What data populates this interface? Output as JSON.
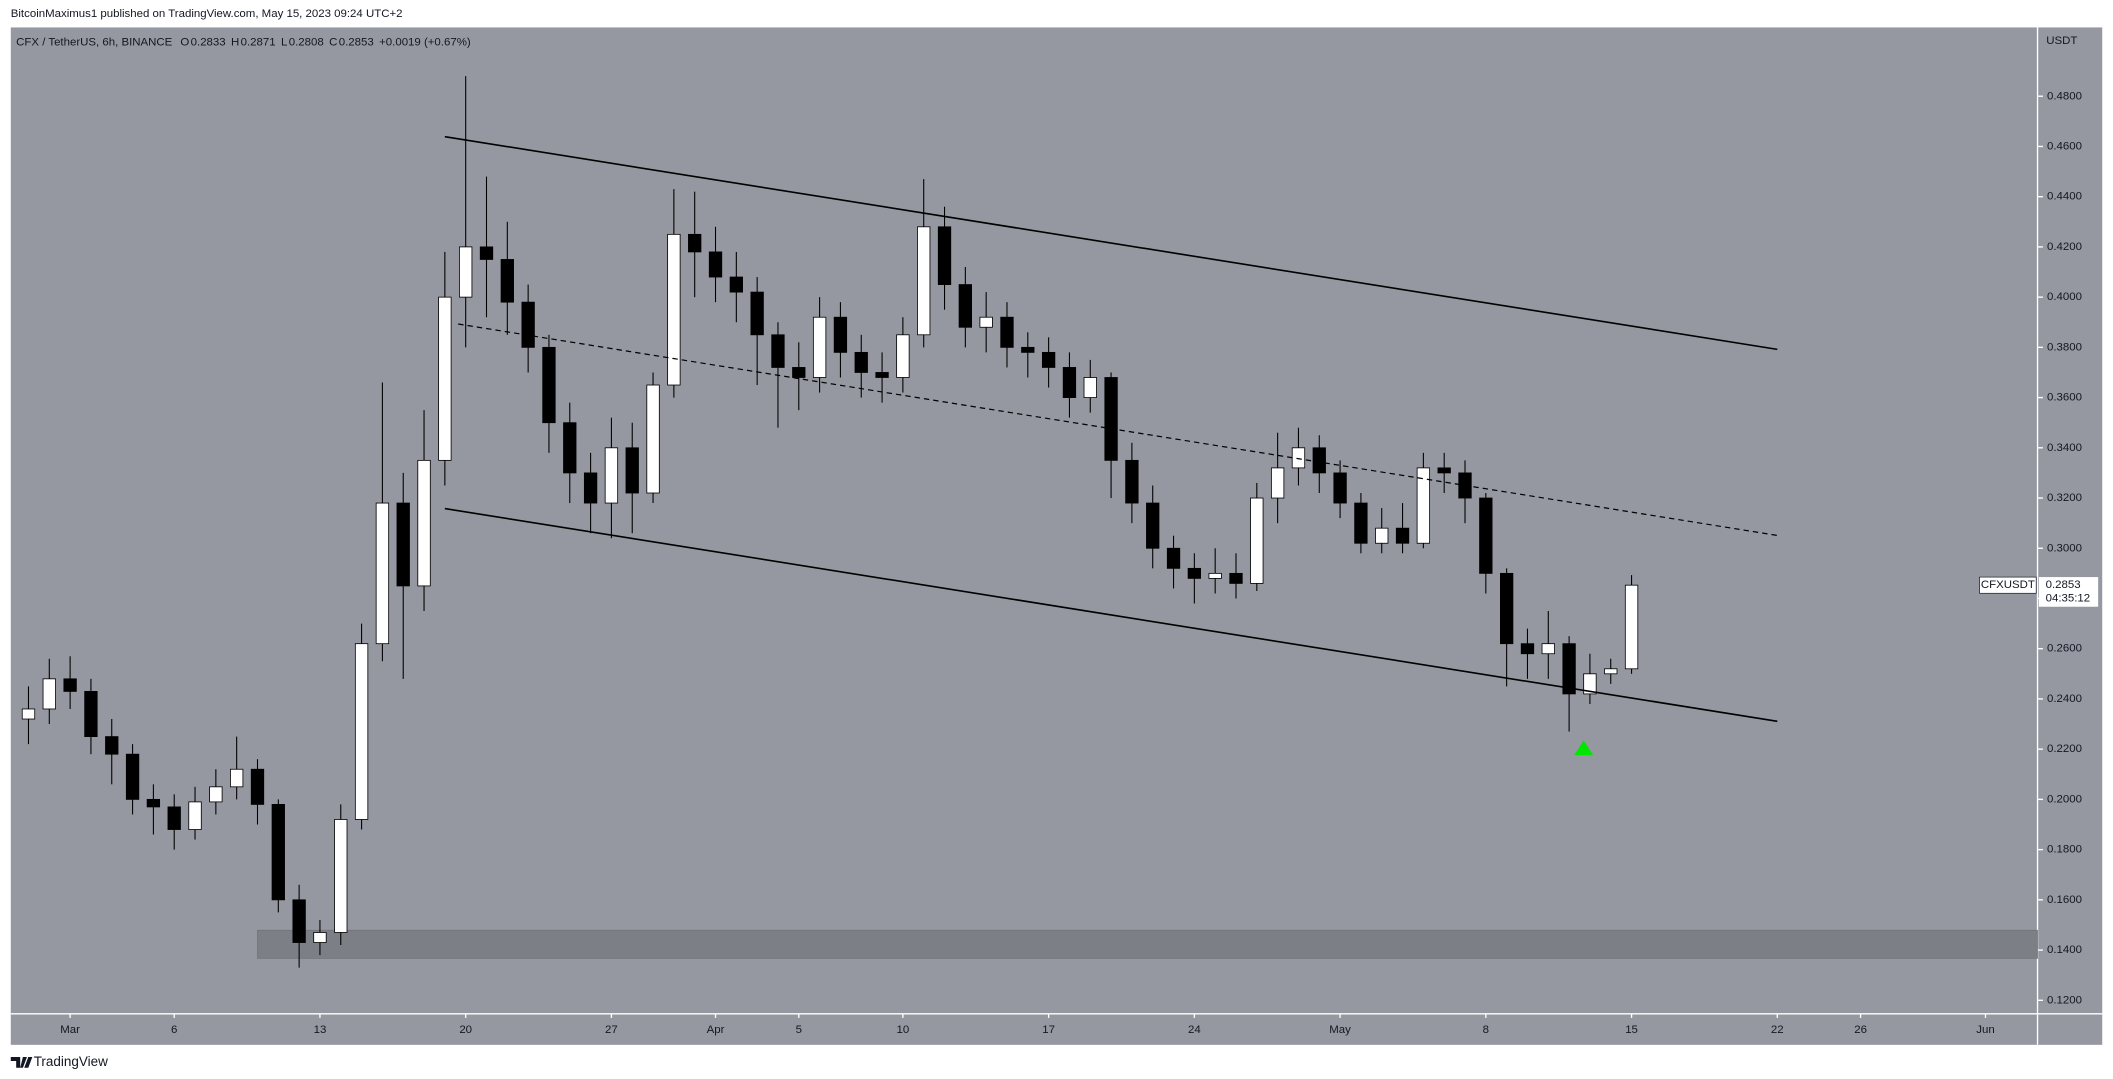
{
  "chart_data": {
    "type": "candlestick",
    "published": "BitcoinMaximus1 published on TradingView.com, May 15, 2023 09:24 UTC+2",
    "symbol": "CFX / TetherUS, 6h, BINANCE",
    "ohlc_header": [
      {
        "key": "O",
        "value": 0.2833
      },
      {
        "key": "H",
        "value": 0.2871
      },
      {
        "key": "L",
        "value": 0.2808
      },
      {
        "key": "C",
        "value": 0.2853
      }
    ],
    "change": "+0.0019 (+0.67%)",
    "y_unit": "USDT",
    "brand": "TradingView",
    "background": "#9598a1",
    "up_color": "#ffffff",
    "down_color": "#000000",
    "wick_color": "#000000",
    "x": [
      58,
      59,
      60,
      61,
      62,
      63,
      64,
      65,
      66,
      67,
      68,
      69,
      70,
      71,
      72,
      73,
      74,
      75,
      76,
      77,
      78,
      79,
      80,
      81,
      82,
      83,
      84,
      85,
      86,
      87,
      88,
      89,
      90,
      91,
      92,
      93,
      94,
      95,
      96,
      97,
      98,
      99,
      100,
      101,
      102,
      103,
      104,
      105,
      106,
      107,
      108,
      109,
      110,
      111,
      112,
      113,
      114,
      115,
      116,
      117,
      118,
      119,
      120,
      121,
      122,
      123,
      124,
      125,
      126,
      127,
      128,
      129,
      130,
      131,
      132,
      133,
      134,
      135
    ],
    "open": [
      0.232,
      0.236,
      0.248,
      0.243,
      0.225,
      0.218,
      0.2,
      0.197,
      0.188,
      0.199,
      0.205,
      0.212,
      0.198,
      0.16,
      0.143,
      0.147,
      0.192,
      0.262,
      0.318,
      0.285,
      0.335,
      0.4,
      0.42,
      0.415,
      0.398,
      0.38,
      0.35,
      0.33,
      0.318,
      0.34,
      0.322,
      0.365,
      0.425,
      0.418,
      0.408,
      0.402,
      0.385,
      0.372,
      0.368,
      0.392,
      0.378,
      0.37,
      0.368,
      0.385,
      0.428,
      0.405,
      0.388,
      0.392,
      0.38,
      0.378,
      0.372,
      0.36,
      0.368,
      0.335,
      0.318,
      0.3,
      0.292,
      0.288,
      0.29,
      0.286,
      0.32,
      0.332,
      0.34,
      0.33,
      0.318,
      0.302,
      0.308,
      0.302,
      0.332,
      0.33,
      0.32,
      0.29,
      0.262,
      0.258,
      0.262,
      0.242,
      0.25,
      0.252
    ],
    "high": [
      0.245,
      0.256,
      0.257,
      0.248,
      0.232,
      0.222,
      0.206,
      0.202,
      0.205,
      0.212,
      0.225,
      0.216,
      0.2,
      0.166,
      0.152,
      0.198,
      0.27,
      0.366,
      0.33,
      0.355,
      0.418,
      0.488,
      0.448,
      0.43,
      0.405,
      0.385,
      0.358,
      0.338,
      0.352,
      0.35,
      0.37,
      0.443,
      0.442,
      0.428,
      0.418,
      0.408,
      0.39,
      0.382,
      0.4,
      0.398,
      0.385,
      0.378,
      0.392,
      0.447,
      0.436,
      0.412,
      0.402,
      0.398,
      0.386,
      0.384,
      0.378,
      0.375,
      0.37,
      0.342,
      0.325,
      0.305,
      0.298,
      0.3,
      0.298,
      0.326,
      0.346,
      0.348,
      0.345,
      0.335,
      0.322,
      0.316,
      0.318,
      0.338,
      0.338,
      0.335,
      0.322,
      0.292,
      0.268,
      0.275,
      0.265,
      0.258,
      0.256,
      0.2893
    ],
    "low": [
      0.222,
      0.23,
      0.236,
      0.218,
      0.206,
      0.194,
      0.186,
      0.18,
      0.184,
      0.194,
      0.2,
      0.19,
      0.155,
      0.133,
      0.138,
      0.142,
      0.188,
      0.255,
      0.248,
      0.275,
      0.325,
      0.38,
      0.392,
      0.385,
      0.37,
      0.338,
      0.318,
      0.306,
      0.304,
      0.306,
      0.318,
      0.36,
      0.4,
      0.398,
      0.39,
      0.365,
      0.348,
      0.355,
      0.362,
      0.368,
      0.36,
      0.358,
      0.362,
      0.38,
      0.395,
      0.38,
      0.378,
      0.372,
      0.368,
      0.364,
      0.352,
      0.354,
      0.32,
      0.31,
      0.292,
      0.284,
      0.278,
      0.282,
      0.28,
      0.283,
      0.31,
      0.325,
      0.322,
      0.312,
      0.298,
      0.298,
      0.298,
      0.3,
      0.322,
      0.31,
      0.282,
      0.245,
      0.248,
      0.248,
      0.227,
      0.238,
      0.246,
      0.25
    ],
    "close": [
      0.236,
      0.248,
      0.243,
      0.225,
      0.218,
      0.2,
      0.197,
      0.188,
      0.199,
      0.205,
      0.212,
      0.198,
      0.16,
      0.143,
      0.147,
      0.192,
      0.262,
      0.318,
      0.285,
      0.335,
      0.4,
      0.42,
      0.415,
      0.398,
      0.38,
      0.35,
      0.33,
      0.318,
      0.34,
      0.322,
      0.365,
      0.425,
      0.418,
      0.408,
      0.402,
      0.385,
      0.372,
      0.368,
      0.392,
      0.378,
      0.37,
      0.368,
      0.385,
      0.428,
      0.405,
      0.388,
      0.392,
      0.38,
      0.378,
      0.372,
      0.36,
      0.368,
      0.335,
      0.318,
      0.3,
      0.292,
      0.288,
      0.29,
      0.286,
      0.32,
      0.332,
      0.34,
      0.33,
      0.318,
      0.302,
      0.308,
      0.302,
      0.332,
      0.33,
      0.32,
      0.29,
      0.262,
      0.258,
      0.262,
      0.242,
      0.25,
      0.252,
      0.2853
    ],
    "xlim": [
      57.15,
      154.5
    ],
    "xticks": [
      {
        "value": 60,
        "label": "Mar"
      },
      {
        "value": 65,
        "label": "6"
      },
      {
        "value": 72,
        "label": "13"
      },
      {
        "value": 79,
        "label": "20"
      },
      {
        "value": 86,
        "label": "27"
      },
      {
        "value": 91,
        "label": "Apr"
      },
      {
        "value": 95,
        "label": "5"
      },
      {
        "value": 100,
        "label": "10"
      },
      {
        "value": 107,
        "label": "17"
      },
      {
        "value": 114,
        "label": "24"
      },
      {
        "value": 121,
        "label": "May"
      },
      {
        "value": 128,
        "label": "8"
      },
      {
        "value": 135,
        "label": "15"
      },
      {
        "value": 142,
        "label": "22"
      },
      {
        "value": 146,
        "label": "26"
      },
      {
        "value": 152,
        "label": "Jun"
      }
    ],
    "ylim": [
      0.1146,
      0.5074
    ],
    "yticks": [
      {
        "value": 0.12,
        "label": "0.1200"
      },
      {
        "value": 0.14,
        "label": "0.1400"
      },
      {
        "value": 0.16,
        "label": "0.1600"
      },
      {
        "value": 0.18,
        "label": "0.1800"
      },
      {
        "value": 0.2,
        "label": "0.2000"
      },
      {
        "value": 0.22,
        "label": "0.2200"
      },
      {
        "value": 0.24,
        "label": "0.2400"
      },
      {
        "value": 0.26,
        "label": "0.2600"
      },
      {
        "value": 0.28,
        "label": "0.2800"
      },
      {
        "value": 0.3,
        "label": "0.3000"
      },
      {
        "value": 0.32,
        "label": "0.3200"
      },
      {
        "value": 0.34,
        "label": "0.3400"
      },
      {
        "value": 0.36,
        "label": "0.3600"
      },
      {
        "value": 0.38,
        "label": "0.3800"
      },
      {
        "value": 0.4,
        "label": "0.4000"
      },
      {
        "value": 0.42,
        "label": "0.4200"
      },
      {
        "value": 0.44,
        "label": "0.4400"
      },
      {
        "value": 0.46,
        "label": "0.4600"
      },
      {
        "value": 0.48,
        "label": "0.4800"
      }
    ],
    "lines": [
      {
        "style": "solid",
        "x": [
          78.0,
          142
        ],
        "y": [
          0.4639,
          0.3792
        ]
      },
      {
        "style": "dashed",
        "x": [
          78.64,
          142
        ],
        "y": [
          0.3893,
          0.3051
        ]
      },
      {
        "style": "solid",
        "x": [
          78.0,
          142
        ],
        "y": [
          0.3158,
          0.2311
        ]
      }
    ],
    "zone": {
      "x": [
        69,
        154.5
      ],
      "y": [
        0.1367,
        0.1479
      ],
      "color": "#7d7f87"
    },
    "marker": {
      "x": 132.7,
      "y": 0.2203,
      "color": "#00e600"
    },
    "last_symbol": "CFXUSDT",
    "last_price": 0.2853,
    "countdown": "04:35:12"
  }
}
